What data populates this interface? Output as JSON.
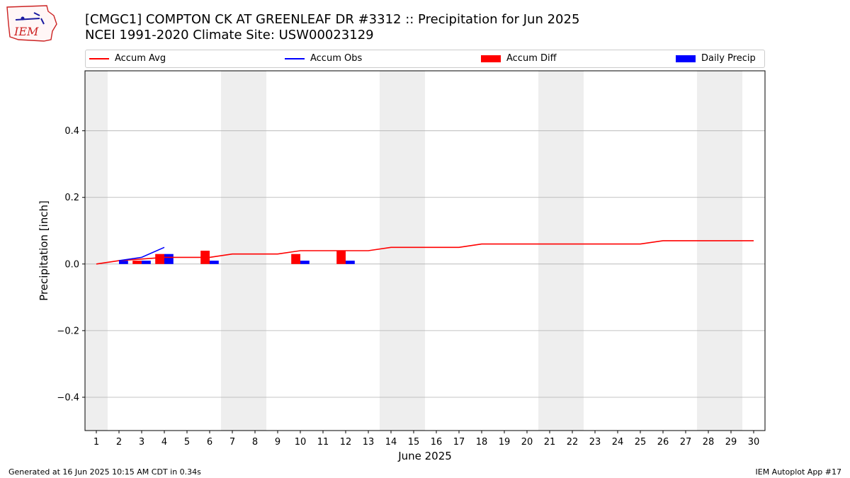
{
  "header": {
    "title": "[CMGC1] COMPTON CK AT GREENLEAF DR #3312 :: Precipitation for Jun 2025",
    "subtitle": "NCEI 1991-2020 Climate Site: USW00023129",
    "logo_text": "IEM"
  },
  "legend": {
    "items": [
      {
        "label": "Accum Avg",
        "color": "#ff0000",
        "kind": "line"
      },
      {
        "label": "Accum Obs",
        "color": "#0000ff",
        "kind": "line"
      },
      {
        "label": "Accum Diff",
        "color": "#ff0000",
        "kind": "bar"
      },
      {
        "label": "Daily Precip",
        "color": "#0000ff",
        "kind": "bar"
      }
    ]
  },
  "footer": {
    "left": "Generated at 16 Jun 2025 10:15 AM CDT in 0.34s",
    "right": "IEM Autoplot App #17"
  },
  "chart_data": {
    "type": "bar",
    "title": "[CMGC1] COMPTON CK AT GREENLEAF DR #3312 :: Precipitation for Jun 2025",
    "subtitle": "NCEI 1991-2020 Climate Site: USW00023129",
    "xlabel": "June 2025",
    "ylabel": "Precipitation [inch]",
    "x": [
      1,
      2,
      3,
      4,
      5,
      6,
      7,
      8,
      9,
      10,
      11,
      12,
      13,
      14,
      15,
      16,
      17,
      18,
      19,
      20,
      21,
      22,
      23,
      24,
      25,
      26,
      27,
      28,
      29,
      30
    ],
    "xlim": [
      0.5,
      30.5
    ],
    "ylim": [
      -0.5,
      0.58
    ],
    "yticks": [
      -0.4,
      -0.2,
      0.0,
      0.2,
      0.4
    ],
    "ytick_labels": [
      "−0.4",
      "−0.2",
      "0.0",
      "0.2",
      "0.4"
    ],
    "grid": "horizontal",
    "legend_position": "top",
    "weekend_shading": [
      [
        0.5,
        1.5
      ],
      [
        6.5,
        8.5
      ],
      [
        13.5,
        15.5
      ],
      [
        20.5,
        22.5
      ],
      [
        27.5,
        29.5
      ]
    ],
    "series": [
      {
        "name": "Accum Avg",
        "kind": "line",
        "color": "#ff0000",
        "x": [
          1,
          2,
          3,
          4,
          5,
          6,
          7,
          8,
          9,
          10,
          11,
          12,
          13,
          14,
          15,
          16,
          17,
          18,
          19,
          20,
          21,
          22,
          23,
          24,
          25,
          26,
          27,
          28,
          29,
          30
        ],
        "values": [
          0.0,
          0.01,
          0.015,
          0.02,
          0.02,
          0.02,
          0.03,
          0.03,
          0.03,
          0.04,
          0.04,
          0.04,
          0.04,
          0.05,
          0.05,
          0.05,
          0.05,
          0.06,
          0.06,
          0.06,
          0.06,
          0.06,
          0.06,
          0.06,
          0.06,
          0.07,
          0.07,
          0.07,
          0.07,
          0.07
        ]
      },
      {
        "name": "Accum Obs",
        "kind": "line",
        "color": "#0000ff",
        "x": [
          2,
          3,
          4
        ],
        "values": [
          0.01,
          0.02,
          0.05
        ]
      },
      {
        "name": "Accum Diff",
        "kind": "bar",
        "color": "#ff0000",
        "x": [
          3,
          4,
          6,
          10,
          12
        ],
        "values": [
          0.01,
          0.03,
          0.04,
          0.03,
          0.04
        ]
      },
      {
        "name": "Daily Precip",
        "kind": "bar",
        "color": "#0000ff",
        "x": [
          2,
          3,
          4,
          6,
          10,
          12
        ],
        "values": [
          0.01,
          0.01,
          0.03,
          0.01,
          0.01,
          0.01
        ]
      }
    ]
  }
}
